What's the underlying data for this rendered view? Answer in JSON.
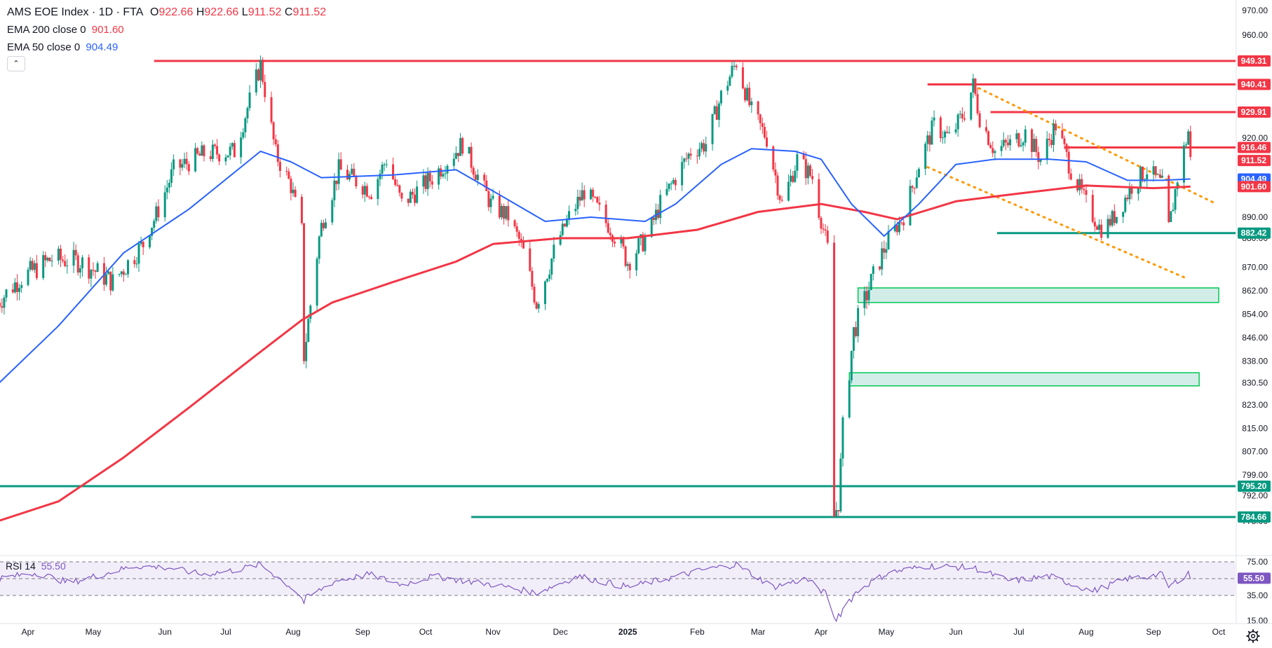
{
  "header": {
    "title": "AMS EOE Index · 1D · FTA",
    "ohlc": [
      {
        "k": "O",
        "v": "922.66"
      },
      {
        "k": "H",
        "v": "922.66"
      },
      {
        "k": "L",
        "v": "911.52"
      },
      {
        "k": "C",
        "v": "911.52"
      }
    ],
    "ema200_label": "EMA 200 close 0",
    "ema200_value": "901.60",
    "ema50_label": "EMA 50 close 0",
    "ema50_value": "904.49"
  },
  "rsi": {
    "label": "RSI 14",
    "value": "55.50"
  },
  "colors": {
    "red": "#f23645",
    "green": "#089981",
    "blue": "#2962ff",
    "level": "#00c853",
    "orange": "#ff9800",
    "rsi": "#7e57c2"
  },
  "chart_data": {
    "type": "candlestick",
    "y_ticks": [
      "970.00",
      "960.00",
      "920.00",
      "890.00",
      "880.00",
      "870.00",
      "862.00",
      "854.00",
      "846.00",
      "838.00",
      "830.50",
      "823.00",
      "815.00",
      "807.00",
      "799.00",
      "792.00",
      "778.00"
    ],
    "x_ticks": [
      {
        "label": "Apr",
        "date": "2024-04-01"
      },
      {
        "label": "May",
        "date": "2024-05-01"
      },
      {
        "label": "Jun",
        "date": "2024-06-03"
      },
      {
        "label": "Jul",
        "date": "2024-07-01"
      },
      {
        "label": "Aug",
        "date": "2024-08-01"
      },
      {
        "label": "Sep",
        "date": "2024-09-02"
      },
      {
        "label": "Oct",
        "date": "2024-10-01"
      },
      {
        "label": "Nov",
        "date": "2024-11-01"
      },
      {
        "label": "Dec",
        "date": "2024-12-02"
      },
      {
        "label": "2025",
        "date": "2025-01-02"
      },
      {
        "label": "Feb",
        "date": "2025-02-03"
      },
      {
        "label": "Mar",
        "date": "2025-03-03"
      },
      {
        "label": "Apr",
        "date": "2025-04-01"
      },
      {
        "label": "May",
        "date": "2025-05-01"
      },
      {
        "label": "Jun",
        "date": "2025-06-02"
      },
      {
        "label": "Jul",
        "date": "2025-07-01"
      },
      {
        "label": "Aug",
        "date": "2025-08-01"
      },
      {
        "label": "Sep",
        "date": "2025-09-01"
      },
      {
        "label": "Oct",
        "date": "2025-10-01"
      }
    ],
    "price_series": {
      "name": "AMS EOE Index",
      "points": [
        [
          "2024-03-18",
          858
        ],
        [
          "2024-03-28",
          866
        ],
        [
          "2024-04-12",
          873
        ],
        [
          "2024-04-25",
          872
        ],
        [
          "2024-05-10",
          865
        ],
        [
          "2024-05-24",
          878
        ],
        [
          "2024-06-07",
          908
        ],
        [
          "2024-06-21",
          914
        ],
        [
          "2024-07-05",
          915
        ],
        [
          "2024-07-17",
          948
        ],
        [
          "2024-07-24",
          914
        ],
        [
          "2024-07-31",
          902
        ],
        [
          "2024-08-05",
          884
        ],
        [
          "2024-08-06",
          840
        ],
        [
          "2024-08-14",
          886
        ],
        [
          "2024-08-22",
          908
        ],
        [
          "2024-09-06",
          900
        ],
        [
          "2024-09-13",
          912
        ],
        [
          "2024-09-20",
          895
        ],
        [
          "2024-10-04",
          905
        ],
        [
          "2024-10-18",
          918
        ],
        [
          "2024-10-31",
          895
        ],
        [
          "2024-11-08",
          890
        ],
        [
          "2024-11-15",
          875
        ],
        [
          "2024-11-21",
          858
        ],
        [
          "2024-12-06",
          890
        ],
        [
          "2024-12-13",
          900
        ],
        [
          "2024-12-20",
          892
        ],
        [
          "2025-01-02",
          872
        ],
        [
          "2025-01-10",
          880
        ],
        [
          "2025-01-17",
          895
        ],
        [
          "2025-01-24",
          905
        ],
        [
          "2025-01-31",
          915
        ],
        [
          "2025-02-07",
          918
        ],
        [
          "2025-02-14",
          936
        ],
        [
          "2025-02-21",
          949
        ],
        [
          "2025-02-28",
          930
        ],
        [
          "2025-03-07",
          920
        ],
        [
          "2025-03-14",
          895
        ],
        [
          "2025-03-21",
          912
        ],
        [
          "2025-03-28",
          905
        ],
        [
          "2025-04-04",
          876
        ],
        [
          "2025-04-07",
          784.7
        ],
        [
          "2025-04-09",
          790
        ],
        [
          "2025-04-11",
          815
        ],
        [
          "2025-04-16",
          848
        ],
        [
          "2025-04-24",
          865
        ],
        [
          "2025-05-02",
          880
        ],
        [
          "2025-05-09",
          890
        ],
        [
          "2025-05-16",
          910
        ],
        [
          "2025-05-23",
          925
        ],
        [
          "2025-05-30",
          920
        ],
        [
          "2025-06-06",
          930
        ],
        [
          "2025-06-10",
          940
        ],
        [
          "2025-06-13",
          928
        ],
        [
          "2025-06-20",
          915
        ],
        [
          "2025-06-27",
          918
        ],
        [
          "2025-07-04",
          922
        ],
        [
          "2025-07-11",
          912
        ],
        [
          "2025-07-18",
          925
        ],
        [
          "2025-07-25",
          908
        ],
        [
          "2025-08-01",
          895
        ],
        [
          "2025-08-08",
          884
        ],
        [
          "2025-08-15",
          891
        ],
        [
          "2025-08-22",
          902
        ],
        [
          "2025-08-29",
          908
        ],
        [
          "2025-09-05",
          902
        ],
        [
          "2025-09-08",
          885
        ],
        [
          "2025-09-12",
          905
        ],
        [
          "2025-09-17",
          922.66
        ],
        [
          "2025-09-18",
          911.52
        ]
      ]
    },
    "ema200": {
      "name": "EMA 200 close 0",
      "points": [
        [
          "2024-03-18",
          778
        ],
        [
          "2024-04-15",
          790
        ],
        [
          "2024-05-15",
          805
        ],
        [
          "2024-06-14",
          822
        ],
        [
          "2024-07-15",
          840
        ],
        [
          "2024-08-05",
          852
        ],
        [
          "2024-08-19",
          858
        ],
        [
          "2024-09-16",
          865
        ],
        [
          "2024-10-15",
          872
        ],
        [
          "2024-11-01",
          878
        ],
        [
          "2024-12-02",
          880
        ],
        [
          "2025-01-02",
          880
        ],
        [
          "2025-02-03",
          884
        ],
        [
          "2025-03-03",
          892
        ],
        [
          "2025-04-01",
          895
        ],
        [
          "2025-04-21",
          892
        ],
        [
          "2025-05-06",
          889
        ],
        [
          "2025-06-02",
          896
        ],
        [
          "2025-07-01",
          899
        ],
        [
          "2025-08-01",
          902
        ],
        [
          "2025-09-01",
          901
        ],
        [
          "2025-09-18",
          901.6
        ]
      ]
    },
    "ema50": {
      "name": "EMA 50 close 0",
      "points": [
        [
          "2024-03-18",
          830
        ],
        [
          "2024-04-15",
          850
        ],
        [
          "2024-05-15",
          875
        ],
        [
          "2024-06-14",
          893
        ],
        [
          "2024-07-17",
          915
        ],
        [
          "2024-07-31",
          911
        ],
        [
          "2024-08-14",
          905
        ],
        [
          "2024-09-16",
          906
        ],
        [
          "2024-10-15",
          908
        ],
        [
          "2024-11-05",
          898
        ],
        [
          "2024-11-25",
          888
        ],
        [
          "2024-12-16",
          890
        ],
        [
          "2025-01-10",
          888
        ],
        [
          "2025-01-24",
          895
        ],
        [
          "2025-02-14",
          910
        ],
        [
          "2025-02-28",
          916
        ],
        [
          "2025-03-20",
          915
        ],
        [
          "2025-04-01",
          912
        ],
        [
          "2025-04-15",
          895
        ],
        [
          "2025-04-30",
          881
        ],
        [
          "2025-05-16",
          895
        ],
        [
          "2025-06-02",
          910
        ],
        [
          "2025-06-20",
          912
        ],
        [
          "2025-07-15",
          912
        ],
        [
          "2025-08-01",
          911
        ],
        [
          "2025-08-20",
          904
        ],
        [
          "2025-09-05",
          904
        ],
        [
          "2025-09-18",
          904.49
        ]
      ]
    },
    "horizontal_levels": [
      {
        "price": 949.31,
        "label": "949.31",
        "color": "red",
        "from": "2024-05-29"
      },
      {
        "price": 940.41,
        "label": "940.41",
        "color": "red",
        "from": "2025-05-20"
      },
      {
        "price": 929.91,
        "label": "929.91",
        "color": "red",
        "from": "2025-06-18"
      },
      {
        "price": 916.46,
        "label": "916.46",
        "color": "red",
        "from": "2025-07-22"
      },
      {
        "price": 882.42,
        "label": "882.42",
        "color": "green",
        "from": "2025-06-21"
      },
      {
        "price": 795.2,
        "label": "795.20",
        "color": "green",
        "from": "2024-03-18"
      },
      {
        "price": 784.66,
        "label": "784.66",
        "color": "green",
        "from": "2024-10-22"
      }
    ],
    "price_markers": [
      {
        "price": 911.52,
        "label": "911.52",
        "color": "red"
      },
      {
        "price": 904.49,
        "label": "904.49",
        "color": "blue"
      },
      {
        "price": 901.6,
        "label": "901.60",
        "color": "red"
      }
    ],
    "zones": [
      {
        "from": "2025-04-18",
        "to": "2025-10-01",
        "low": 858,
        "high": 863
      },
      {
        "from": "2025-04-14",
        "to": "2025-09-22",
        "low": 829.5,
        "high": 834
      }
    ],
    "trendlines": [
      {
        "from": [
          "2025-06-10",
          940
        ],
        "to": [
          "2025-09-30",
          895
        ]
      },
      {
        "from": [
          "2025-05-20",
          909
        ],
        "to": [
          "2025-09-17",
          866
        ]
      }
    ],
    "rsi_series": {
      "name": "RSI 14",
      "y_ticks": [
        "75.00",
        "35.00",
        "15.00"
      ],
      "points": [
        [
          "2024-03-18",
          55
        ],
        [
          "2024-04-05",
          62
        ],
        [
          "2024-04-20",
          50
        ],
        [
          "2024-05-05",
          60
        ],
        [
          "2024-05-20",
          70
        ],
        [
          "2024-06-05",
          68
        ],
        [
          "2024-06-20",
          60
        ],
        [
          "2024-07-05",
          65
        ],
        [
          "2024-07-17",
          72
        ],
        [
          "2024-07-31",
          45
        ],
        [
          "2024-08-06",
          30
        ],
        [
          "2024-08-20",
          52
        ],
        [
          "2024-09-05",
          60
        ],
        [
          "2024-09-20",
          48
        ],
        [
          "2024-10-05",
          58
        ],
        [
          "2024-10-20",
          52
        ],
        [
          "2024-11-01",
          48
        ],
        [
          "2024-11-21",
          38
        ],
        [
          "2024-12-10",
          58
        ],
        [
          "2025-01-02",
          45
        ],
        [
          "2025-01-20",
          55
        ],
        [
          "2025-02-05",
          65
        ],
        [
          "2025-02-21",
          72
        ],
        [
          "2025-03-10",
          45
        ],
        [
          "2025-03-25",
          55
        ],
        [
          "2025-04-04",
          35
        ],
        [
          "2025-04-07",
          15
        ],
        [
          "2025-04-20",
          45
        ],
        [
          "2025-05-02",
          62
        ],
        [
          "2025-05-20",
          70
        ],
        [
          "2025-06-10",
          68
        ],
        [
          "2025-06-27",
          52
        ],
        [
          "2025-07-15",
          58
        ],
        [
          "2025-08-04",
          40
        ],
        [
          "2025-08-20",
          55
        ],
        [
          "2025-09-05",
          60
        ],
        [
          "2025-09-08",
          45
        ],
        [
          "2025-09-17",
          62
        ],
        [
          "2025-09-18",
          55.5
        ]
      ]
    }
  }
}
